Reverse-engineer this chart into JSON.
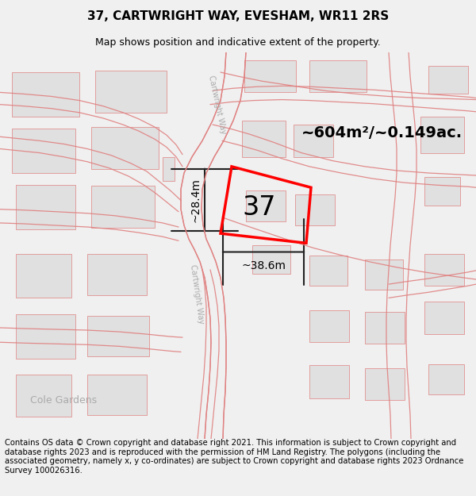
{
  "title": "37, CARTWRIGHT WAY, EVESHAM, WR11 2RS",
  "subtitle": "Map shows position and indicative extent of the property.",
  "footer": "Contains OS data © Crown copyright and database right 2021. This information is subject to Crown copyright and database rights 2023 and is reproduced with the permission of HM Land Registry. The polygons (including the associated geometry, namely x, y co-ordinates) are subject to Crown copyright and database rights 2023 Ordnance Survey 100026316.",
  "area_label": "~604m²/~0.149ac.",
  "width_label": "~38.6m",
  "height_label": "~28.4m",
  "property_number": "37",
  "bg_color": "#f0f0f0",
  "map_bg": "#ffffff",
  "plot_outline_color": "#ff0000",
  "building_color": "#e0e0e0",
  "road_line_color": "#e08080",
  "dim_line_color": "#222222",
  "title_fontsize": 11,
  "subtitle_fontsize": 9,
  "footer_fontsize": 7.2,
  "area_fontsize": 14,
  "number_fontsize": 24,
  "dim_fontsize": 10,
  "road_label_color": "#aaaaaa",
  "road_label_fontsize": 7,
  "cole_fontsize": 9
}
